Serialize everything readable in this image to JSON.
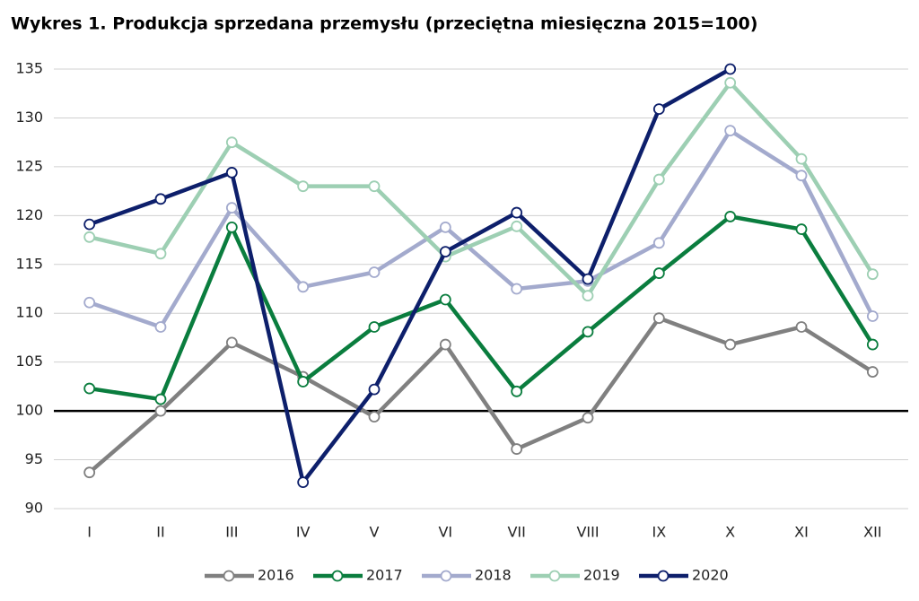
{
  "chart_data": {
    "type": "line",
    "title": "Wykres 1. Produkcja sprzedana przemysłu (przeciętna miesięczna 2015=100)",
    "categories": [
      "I",
      "II",
      "III",
      "IV",
      "V",
      "VI",
      "VII",
      "VIII",
      "IX",
      "X",
      "XI",
      "XII"
    ],
    "series": [
      {
        "name": "2016",
        "color": "#808080",
        "values": [
          93.7,
          100,
          107,
          103.5,
          99.4,
          106.8,
          96.1,
          99.3,
          109.5,
          106.8,
          108.6,
          104
        ]
      },
      {
        "name": "2017",
        "color": "#0a7d3e",
        "values": [
          102.3,
          101.2,
          118.8,
          103,
          108.6,
          111.4,
          102,
          108.1,
          114.1,
          119.9,
          118.6,
          106.8
        ]
      },
      {
        "name": "2018",
        "color": "#a3aacd",
        "values": [
          111.1,
          108.6,
          120.8,
          112.7,
          114.2,
          118.8,
          112.5,
          113.3,
          117.2,
          128.7,
          124.1,
          109.7
        ]
      },
      {
        "name": "2019",
        "color": "#9dcfb3",
        "values": [
          117.8,
          116.1,
          127.5,
          123,
          123,
          115.8,
          118.9,
          111.8,
          123.7,
          133.6,
          125.8,
          114
        ]
      },
      {
        "name": "2020",
        "color": "#0d1f6b",
        "values": [
          119.1,
          121.7,
          124.4,
          92.7,
          102.2,
          116.3,
          120.3,
          113.5,
          130.9,
          135,
          null,
          null
        ]
      }
    ],
    "ylim": [
      90,
      135
    ],
    "yticks": [
      90,
      95,
      100,
      105,
      110,
      115,
      120,
      125,
      130,
      135
    ],
    "grid": true,
    "reference_line": 100,
    "legend": "bottom"
  }
}
